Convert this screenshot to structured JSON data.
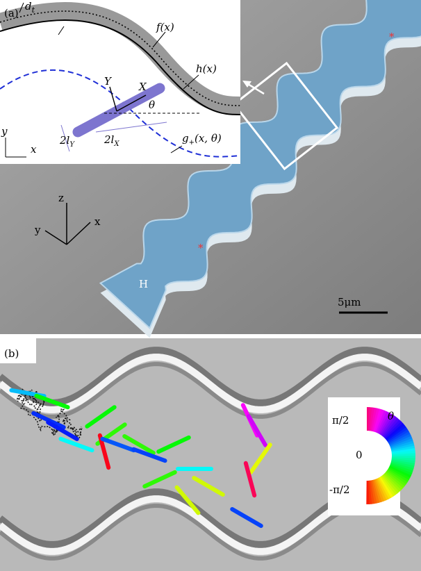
{
  "panel_a": {
    "label": "(a)",
    "inset": {
      "d": {
        "main": "d",
        "sub": "t"
      },
      "f": "f(x)",
      "h": "h(x)",
      "Y": "Y",
      "X": "X",
      "theta": "θ",
      "y": "y",
      "x": "x",
      "lY": {
        "main": "2l",
        "sub": "Y"
      },
      "lX": {
        "main": "2l",
        "sub": "X"
      },
      "g": {
        "main": "g",
        "sub": "+",
        "rest": "(x, θ)"
      }
    },
    "axes": {
      "z": "z",
      "y": "y",
      "x": "x"
    },
    "height": "H",
    "scale_bar": "5μm"
  },
  "panel_b": {
    "label": "(b)",
    "colorbar": {
      "title": "θ",
      "top": "π/2",
      "mid": "0",
      "bottom": "-π/2"
    }
  }
}
